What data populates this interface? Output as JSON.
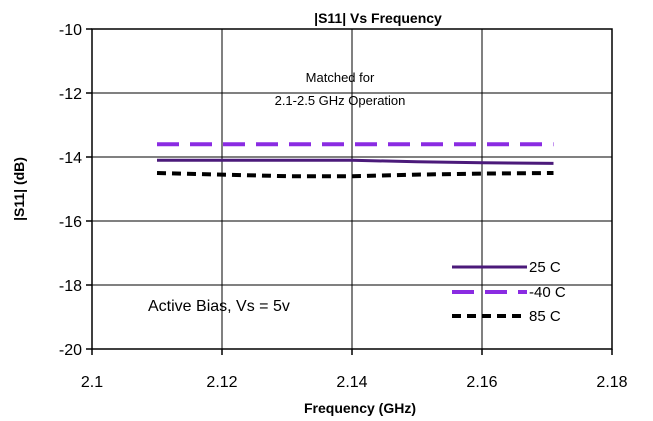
{
  "chart_data": {
    "type": "line",
    "title": "|S11| Vs Frequency",
    "xlabel": "Frequency (GHz)",
    "ylabel": "|S11| (dB)",
    "xlim": [
      2.1,
      2.18
    ],
    "ylim": [
      -20,
      -10
    ],
    "xticks": [
      "2.1",
      "2.12",
      "2.14",
      "2.16",
      "2.18"
    ],
    "yticks": [
      "-10",
      "-12",
      "-14",
      "-16",
      "-18",
      "-20"
    ],
    "grid": "horizontal",
    "legend_position": "bottom-right",
    "annotations": {
      "matched_line1": "Matched for",
      "matched_line2": "2.1-2.5  GHz Operation",
      "bias": "Active Bias, Vs = 5v"
    },
    "series": [
      {
        "name": "25 C",
        "color": "#4b1a7a",
        "style": "solid",
        "x": [
          2.11,
          2.12,
          2.13,
          2.14,
          2.15,
          2.16,
          2.171
        ],
        "y": [
          -14.1,
          -14.1,
          -14.1,
          -14.1,
          -14.15,
          -14.18,
          -14.2
        ]
      },
      {
        "name": "-40 C",
        "color": "#8a2be2",
        "style": "dashed",
        "x": [
          2.11,
          2.12,
          2.13,
          2.14,
          2.15,
          2.16,
          2.171
        ],
        "y": [
          -13.6,
          -13.6,
          -13.6,
          -13.6,
          -13.6,
          -13.6,
          -13.6
        ]
      },
      {
        "name": "85 C",
        "color": "#000000",
        "style": "dotted",
        "x": [
          2.11,
          2.12,
          2.13,
          2.14,
          2.15,
          2.16,
          2.171
        ],
        "y": [
          -14.5,
          -14.55,
          -14.6,
          -14.6,
          -14.55,
          -14.52,
          -14.5
        ]
      }
    ]
  }
}
